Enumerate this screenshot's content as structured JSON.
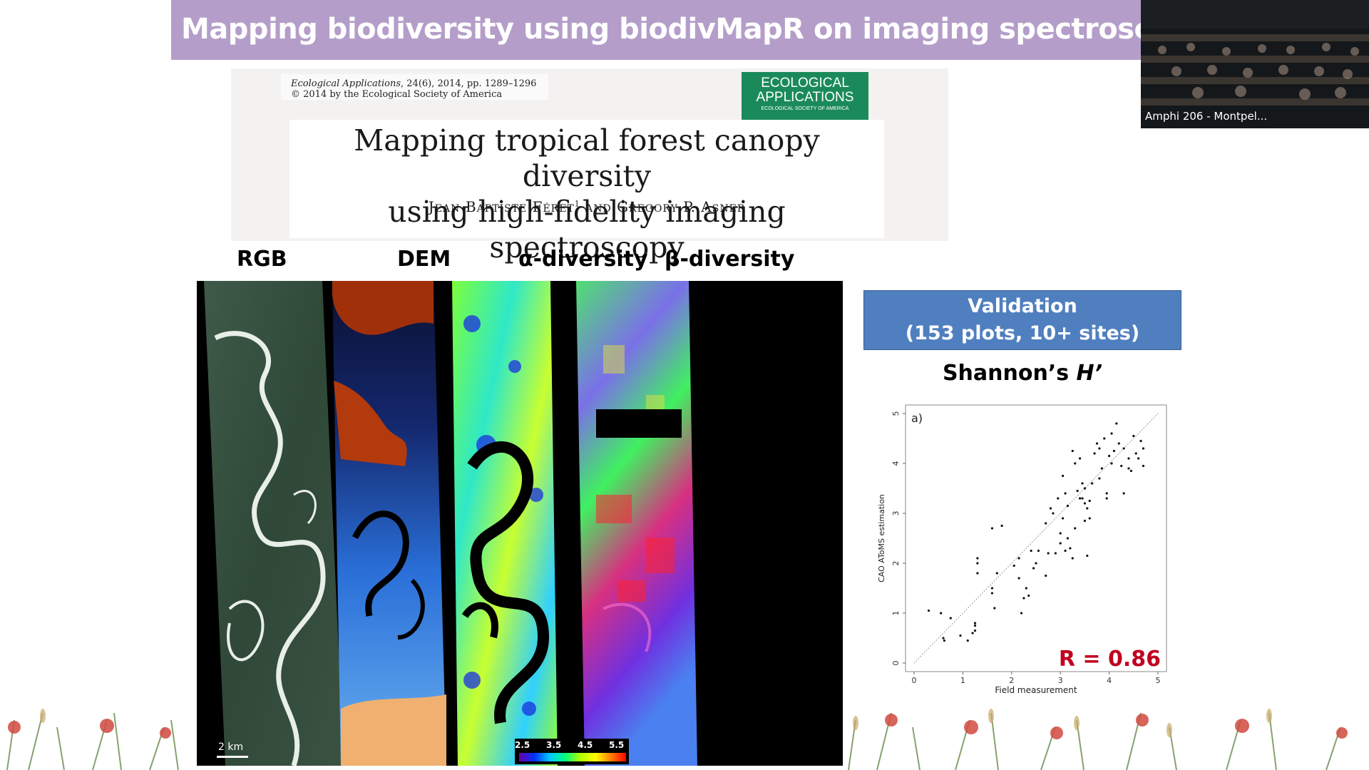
{
  "slide": {
    "title": "Mapping biodiversity using biodivMapR on imaging spectroscopy"
  },
  "video": {
    "participant_label": "Amphi 206 - Montpel..."
  },
  "paper": {
    "citation_journal": "Ecological Applications",
    "citation_rest": ", 24(6), 2014, pp. 1289–1296",
    "copyright": "© 2014 by the Ecological Society of America",
    "logo_line1": "ECOLOGICAL",
    "logo_line2": "APPLICATIONS",
    "logo_line3": "ECOLOGICAL SOCIETY OF AMERICA",
    "title_line1": "Mapping tropical forest canopy diversity",
    "title_line2": "using high-fidelity imaging spectroscopy",
    "authors_part1": "Jean-Baptiste Féret",
    "authors_sup": "1",
    "authors_part2": " and Gregory P. Asner"
  },
  "maps": {
    "labels": [
      "RGB",
      "DEM",
      "α-diversity",
      "β-diversity"
    ],
    "scale_label": "2 km",
    "colorbar_ticks": [
      "2.5",
      "3.5",
      "4.5",
      "5.5"
    ]
  },
  "validation": {
    "line1": "Validation",
    "line2": "(153 plots, 10+ sites)",
    "metric_prefix": "Shannon’s ",
    "metric_symbol": "H’"
  },
  "chart_data": {
    "type": "scatter",
    "panel_label": "a)",
    "xlabel": "Field measurement",
    "ylabel": "CAO AToMS estimation",
    "xlim": [
      0,
      5
    ],
    "ylim": [
      0,
      5
    ],
    "xticks": [
      "0",
      "1",
      "2",
      "3",
      "4",
      "5"
    ],
    "yticks": [
      "0",
      "1",
      "2",
      "3",
      "4",
      "5"
    ],
    "reference_line": "1:1 dotted",
    "annotation": "R = 0.86",
    "annotation_color": "#c0001f",
    "points": [
      [
        0.3,
        1.05
      ],
      [
        0.55,
        1.0
      ],
      [
        0.6,
        0.5
      ],
      [
        0.62,
        0.45
      ],
      [
        0.75,
        0.9
      ],
      [
        0.95,
        0.55
      ],
      [
        1.1,
        0.45
      ],
      [
        1.2,
        0.6
      ],
      [
        1.25,
        0.75
      ],
      [
        1.25,
        0.8
      ],
      [
        1.25,
        0.65
      ],
      [
        1.3,
        2.1
      ],
      [
        1.3,
        2.0
      ],
      [
        1.3,
        1.8
      ],
      [
        1.6,
        1.5
      ],
      [
        1.6,
        1.4
      ],
      [
        1.6,
        2.7
      ],
      [
        1.65,
        1.1
      ],
      [
        1.7,
        1.8
      ],
      [
        1.8,
        2.75
      ],
      [
        2.05,
        1.95
      ],
      [
        2.15,
        1.7
      ],
      [
        2.15,
        2.1
      ],
      [
        2.2,
        1.0
      ],
      [
        2.25,
        1.3
      ],
      [
        2.3,
        1.5
      ],
      [
        2.35,
        1.35
      ],
      [
        2.4,
        2.25
      ],
      [
        2.45,
        1.9
      ],
      [
        2.5,
        2.0
      ],
      [
        2.55,
        2.25
      ],
      [
        2.7,
        1.75
      ],
      [
        2.75,
        2.2
      ],
      [
        2.7,
        2.8
      ],
      [
        2.8,
        3.1
      ],
      [
        2.85,
        3.0
      ],
      [
        2.9,
        2.2
      ],
      [
        2.95,
        3.3
      ],
      [
        3.0,
        2.6
      ],
      [
        3.0,
        2.4
      ],
      [
        3.05,
        2.9
      ],
      [
        3.05,
        3.75
      ],
      [
        3.1,
        2.25
      ],
      [
        3.1,
        3.4
      ],
      [
        3.15,
        2.5
      ],
      [
        3.15,
        3.15
      ],
      [
        3.2,
        2.3
      ],
      [
        3.25,
        2.1
      ],
      [
        3.25,
        4.25
      ],
      [
        3.3,
        2.7
      ],
      [
        3.3,
        4.0
      ],
      [
        3.35,
        3.45
      ],
      [
        3.4,
        3.3
      ],
      [
        3.4,
        4.1
      ],
      [
        3.45,
        3.6
      ],
      [
        3.45,
        3.3
      ],
      [
        3.5,
        2.85
      ],
      [
        3.5,
        3.2
      ],
      [
        3.5,
        3.5
      ],
      [
        3.55,
        2.15
      ],
      [
        3.55,
        3.1
      ],
      [
        3.6,
        2.9
      ],
      [
        3.6,
        3.25
      ],
      [
        3.65,
        3.6
      ],
      [
        3.7,
        4.2
      ],
      [
        3.75,
        4.4
      ],
      [
        3.8,
        4.3
      ],
      [
        3.8,
        3.7
      ],
      [
        3.85,
        3.9
      ],
      [
        3.9,
        4.5
      ],
      [
        3.95,
        3.3
      ],
      [
        3.95,
        3.4
      ],
      [
        4.0,
        4.15
      ],
      [
        4.05,
        4.6
      ],
      [
        4.05,
        4.0
      ],
      [
        4.1,
        4.25
      ],
      [
        4.15,
        4.8
      ],
      [
        4.2,
        4.4
      ],
      [
        4.25,
        3.95
      ],
      [
        4.3,
        4.3
      ],
      [
        4.3,
        3.4
      ],
      [
        4.4,
        4.1
      ],
      [
        4.4,
        3.9
      ],
      [
        4.45,
        3.85
      ],
      [
        4.5,
        4.55
      ],
      [
        4.55,
        4.2
      ],
      [
        4.6,
        4.1
      ],
      [
        4.65,
        4.45
      ],
      [
        4.7,
        4.3
      ],
      [
        4.7,
        3.95
      ]
    ]
  }
}
